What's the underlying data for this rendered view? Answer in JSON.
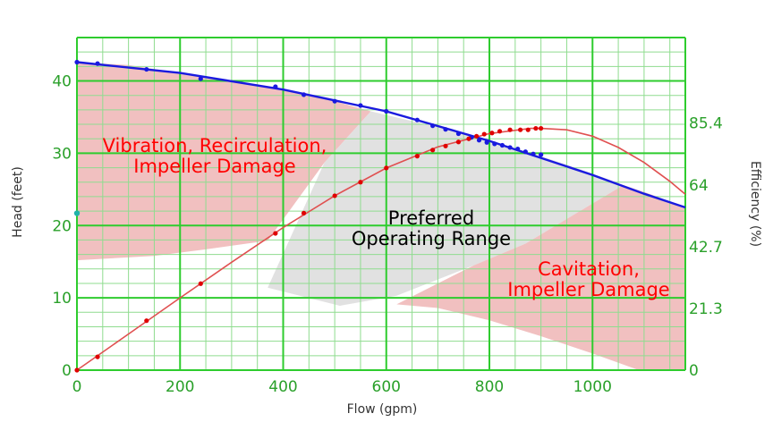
{
  "chart_data": {
    "type": "line",
    "xlabel": "Flow (gpm)",
    "ylabel": "Head (feet)",
    "y2label": "Efficiency (%)",
    "xlim": [
      0,
      1180
    ],
    "ylim": [
      0,
      46
    ],
    "y2lim": [
      0,
      115
    ],
    "x_ticks": [
      "0",
      "200",
      "400",
      "600",
      "800",
      "1000"
    ],
    "y_ticks": [
      "0",
      "10",
      "20",
      "30",
      "40"
    ],
    "y2_ticks": [
      "0",
      "21.3",
      "42.7",
      "64",
      "85.4"
    ],
    "y2_tick_values": [
      0,
      21.3,
      42.7,
      64,
      85.4
    ],
    "grid": true,
    "colors": {
      "grid_major": "#2ecc2e",
      "grid_minor": "#8fdc8f",
      "head": "#1a1adf",
      "efficiency": "#e05050",
      "efficiency_points": "#e00000",
      "zone_red": "#eeb5b5",
      "zone_gray": "#dcdcdc",
      "label_red": "#ff0000",
      "label_black": "#000000",
      "left_marker": "#20b2aa"
    },
    "series": [
      {
        "axis": "left",
        "x": [
          0,
          40,
          135,
          240,
          385,
          440,
          500,
          550,
          600,
          660,
          690,
          715,
          740,
          765,
          780,
          795,
          810,
          825,
          840,
          855,
          870,
          885,
          900
        ],
        "values": [
          42.6,
          42.4,
          41.6,
          40.3,
          39.2,
          38.1,
          37.2,
          36.6,
          35.8,
          34.6,
          33.8,
          33.3,
          32.7,
          32.2,
          31.8,
          31.5,
          31.3,
          31.1,
          30.8,
          30.6,
          30.2,
          29.9,
          29.8
        ]
      },
      {
        "axis": "right",
        "x": [
          0,
          40,
          135,
          240,
          385,
          440,
          500,
          550,
          600,
          660,
          690,
          715,
          740,
          760,
          775,
          790,
          805,
          820,
          840,
          860,
          875,
          890,
          900
        ],
        "values": [
          0,
          4.6,
          17.1,
          29.9,
          47.3,
          54.3,
          60.3,
          65.0,
          69.9,
          74.0,
          76.1,
          77.5,
          78.9,
          80.0,
          80.9,
          81.6,
          82.0,
          82.6,
          83.1,
          83.1,
          83.1,
          83.6,
          83.6
        ]
      }
    ],
    "efficiency_curve": {
      "x": [
        0,
        100,
        200,
        300,
        400,
        500,
        600,
        700,
        800,
        880,
        900,
        950,
        1000,
        1050,
        1100,
        1150,
        1180
      ],
      "values": [
        0,
        12.5,
        25.0,
        37.3,
        49.3,
        60.3,
        69.9,
        77.2,
        81.8,
        83.6,
        83.6,
        83.1,
        80.9,
        77.0,
        71.8,
        65.3,
        60.8
      ]
    },
    "head_curve": {
      "x": [
        0,
        200,
        400,
        600,
        800,
        1000,
        1100,
        1180
      ],
      "values": [
        42.6,
        41.1,
        38.8,
        35.8,
        31.7,
        27.0,
        24.4,
        22.5
      ]
    },
    "zones": [
      {
        "name": "vibration",
        "polygon": [
          [
            0,
            42.6
          ],
          [
            100,
            42.2
          ],
          [
            200,
            41.1
          ],
          [
            300,
            40.1
          ],
          [
            400,
            38.8
          ],
          [
            500,
            37.2
          ],
          [
            570,
            35.8
          ],
          [
            480,
            28.7
          ],
          [
            370,
            17.9
          ],
          [
            250,
            16.7
          ],
          [
            150,
            15.8
          ],
          [
            0,
            15.2
          ]
        ]
      },
      {
        "name": "preferred",
        "polygon": [
          [
            570,
            35.8
          ],
          [
            700,
            33.6
          ],
          [
            800,
            31.7
          ],
          [
            900,
            29.6
          ],
          [
            1000,
            27.2
          ],
          [
            1060,
            25.6
          ],
          [
            870,
            17.5
          ],
          [
            770,
            14.5
          ],
          [
            620,
            10.3
          ],
          [
            510,
            8.9
          ],
          [
            370,
            11.4
          ],
          [
            480,
            28.7
          ]
        ]
      },
      {
        "name": "cavitation",
        "polygon": [
          [
            1060,
            25.6
          ],
          [
            1110,
            24.4
          ],
          [
            1180,
            22.5
          ],
          [
            1180,
            0
          ],
          [
            1090,
            0
          ],
          [
            1000,
            2.3
          ],
          [
            900,
            4.7
          ],
          [
            800,
            6.9
          ],
          [
            700,
            8.6
          ],
          [
            620,
            9.1
          ],
          [
            770,
            14.5
          ],
          [
            870,
            17.5
          ]
        ]
      }
    ],
    "left_marker": {
      "x": 0,
      "y": 21.7
    }
  },
  "annotations": {
    "vibration_line1": "Vibration, Recirculation,",
    "vibration_line2": "Impeller Damage",
    "preferred_line1": "Preferred",
    "preferred_line2": "Operating Range",
    "cavitation_line1": "Cavitation,",
    "cavitation_line2": "Impeller Damage"
  }
}
